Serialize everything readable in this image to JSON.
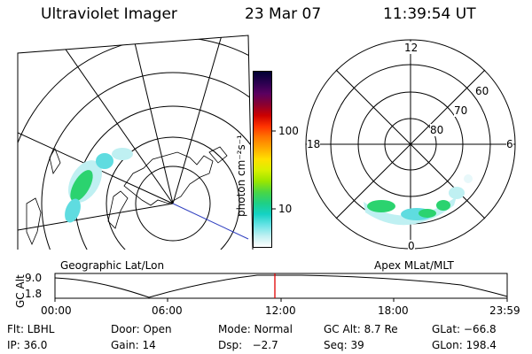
{
  "header": {
    "title": "Ultraviolet Imager",
    "date": "23 Mar 07",
    "time": "11:39:54 UT"
  },
  "left_map": {
    "label": "Geographic Lat/Lon"
  },
  "right_map": {
    "label": "Apex MLat/MLT",
    "mlt_labels": {
      "top": "12",
      "left": "18",
      "right": "6",
      "bottom": "0"
    },
    "lat_labels": [
      "60",
      "70",
      "80"
    ]
  },
  "colorbar": {
    "unit_label": "photon cm⁻²s⁻¹",
    "ticks": [
      "100",
      "10"
    ],
    "colors": [
      "#000033",
      "#2a004f",
      "#5a0060",
      "#8a0030",
      "#cc0000",
      "#ff3300",
      "#ff7700",
      "#ffaa00",
      "#ffe000",
      "#d8f000",
      "#9ae600",
      "#49d645",
      "#1fcf85",
      "#14d2c4",
      "#68e3e6",
      "#c0f0f2",
      "#ffffff"
    ]
  },
  "altitude_plot": {
    "ylabel": "GC Alt",
    "y_ticks": [
      "9.0",
      "1.8"
    ],
    "x_ticks": [
      "00:00",
      "06:00",
      "12:00",
      "18:00",
      "23:59"
    ]
  },
  "info": {
    "row1": {
      "flt": "Flt: LBHL",
      "door": "Door: Open",
      "mode": "Mode: Normal",
      "gcalt": "GC Alt: 8.7 Re",
      "glat": "GLat: −66.8"
    },
    "row2": {
      "ip": "IP: 36.0",
      "gain": "Gain: 14",
      "dsp": "Dsp:   −2.7",
      "seq": "Seq: 39",
      "glon": "GLon: 198.4"
    }
  },
  "colors": {
    "aurora_green": "#2bd36f",
    "aurora_cyan": "#5fdce0",
    "aurora_light": "#bff0f2",
    "orbit_marker": "#e00000"
  }
}
